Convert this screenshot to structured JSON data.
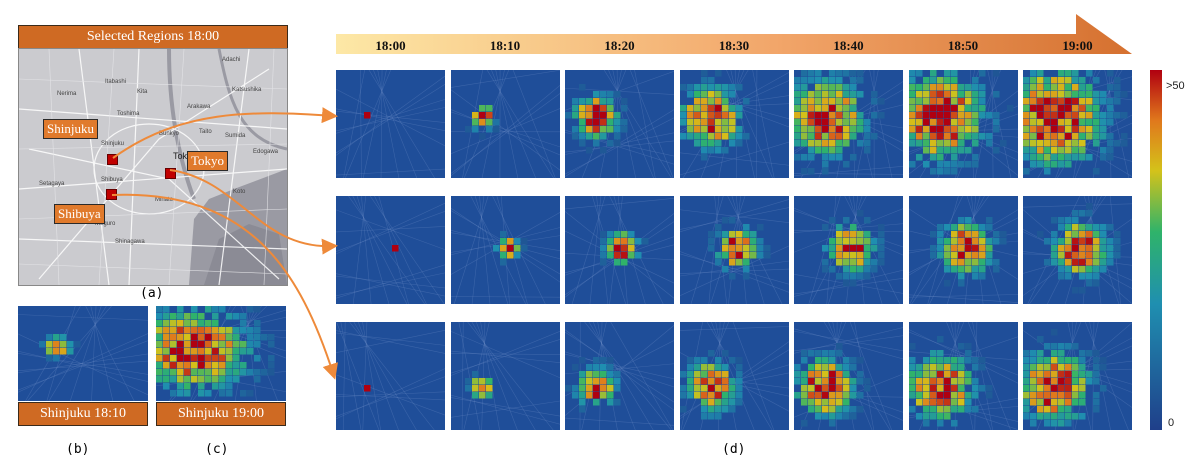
{
  "map_panel": {
    "title": "Selected Regions 18:00",
    "regions": [
      "Shinjuku",
      "Tokyo",
      "Shibuya"
    ],
    "places": [
      "Adachi",
      "Itabashi",
      "Kita",
      "Nerima",
      "Katsushika",
      "Arakawa",
      "Toshima",
      "Taito",
      "Sumida",
      "Bunkyo",
      "Shinjuku",
      "Tokyo",
      "Edogawa",
      "Setagaya",
      "Shibuya",
      "Minato",
      "Koto",
      "Meguro",
      "Shinagawa",
      "Chuo"
    ]
  },
  "panel_labels": {
    "a": "(a)",
    "b": "(b)",
    "c": "(c)",
    "d": "(d)"
  },
  "captions": {
    "b": "Shinjuku 18:10",
    "c": "Shinjuku 19:00"
  },
  "colorbar": {
    "max_label": ">50",
    "min_label": "0",
    "min": 0,
    "max": 50
  },
  "colors": {
    "accent": "#cf6a23",
    "marker": "#c00000",
    "heat_bg": "#1f4e99"
  },
  "chart_data": {
    "type": "heatmap",
    "times": [
      "18:00",
      "18:10",
      "18:20",
      "18:30",
      "18:40",
      "18:50",
      "19:00"
    ],
    "rows": [
      {
        "name": "Shinjuku",
        "center": [
          0.3,
          0.45
        ],
        "spread": [
          0.02,
          0.09,
          0.16,
          0.22,
          0.28,
          0.33,
          0.36
        ],
        "peak": [
          50,
          50,
          50,
          50,
          50,
          50,
          50
        ]
      },
      {
        "name": "Tokyo",
        "center": [
          0.55,
          0.5
        ],
        "spread": [
          0.02,
          0.08,
          0.12,
          0.15,
          0.17,
          0.19,
          0.2
        ],
        "peak": [
          50,
          50,
          50,
          50,
          50,
          50,
          50
        ]
      },
      {
        "name": "Shibuya",
        "center": [
          0.3,
          0.62
        ],
        "spread": [
          0.02,
          0.08,
          0.14,
          0.18,
          0.21,
          0.24,
          0.26
        ],
        "peak": [
          50,
          50,
          50,
          50,
          50,
          50,
          50
        ]
      }
    ],
    "panel_b": {
      "name": "Shinjuku",
      "time": "18:10",
      "center": [
        0.32,
        0.45
      ],
      "spread": 0.08
    },
    "panel_c": {
      "name": "Shinjuku",
      "time": "19:00",
      "center": [
        0.3,
        0.48
      ],
      "spread": 0.34
    }
  }
}
